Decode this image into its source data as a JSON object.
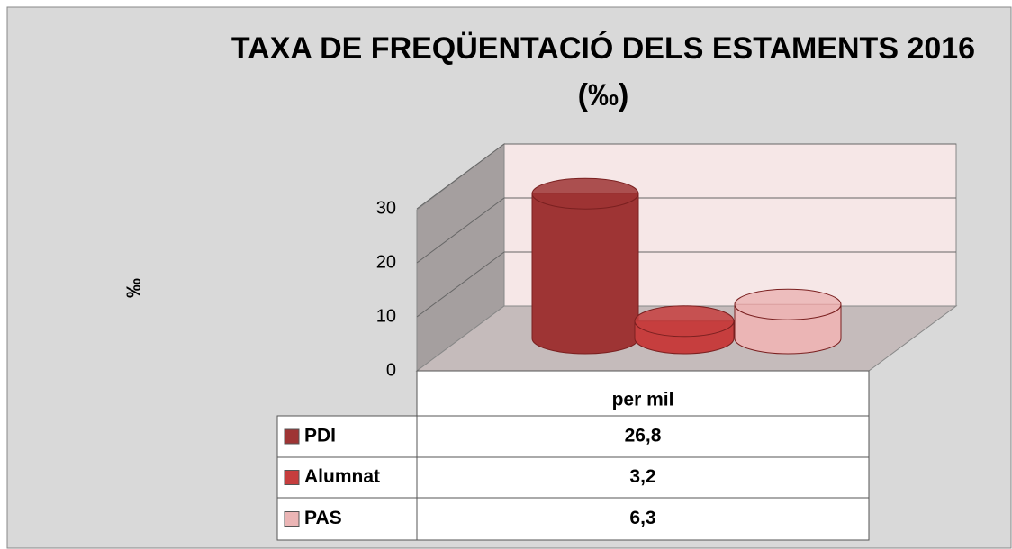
{
  "chart_data": {
    "type": "bar",
    "title": "TAXA DE FREQÜENTACIÓ DELS ESTAMENTS 2016 (‰)",
    "y_label": "‰",
    "categories": [
      "per mil"
    ],
    "series": [
      {
        "name": "PDI",
        "color": "#9e3434",
        "values": [
          26.8
        ],
        "value_labels": [
          "26,8"
        ]
      },
      {
        "name": "Alumnat",
        "color": "#c63e3e",
        "values": [
          3.2
        ],
        "value_labels": [
          "3,2"
        ]
      },
      {
        "name": "PAS",
        "color": "#ebb5b5",
        "values": [
          6.3
        ],
        "value_labels": [
          "6,3"
        ]
      }
    ],
    "ylim": [
      0,
      30
    ],
    "yticks": [
      0,
      10,
      20,
      30
    ],
    "grid": true
  }
}
